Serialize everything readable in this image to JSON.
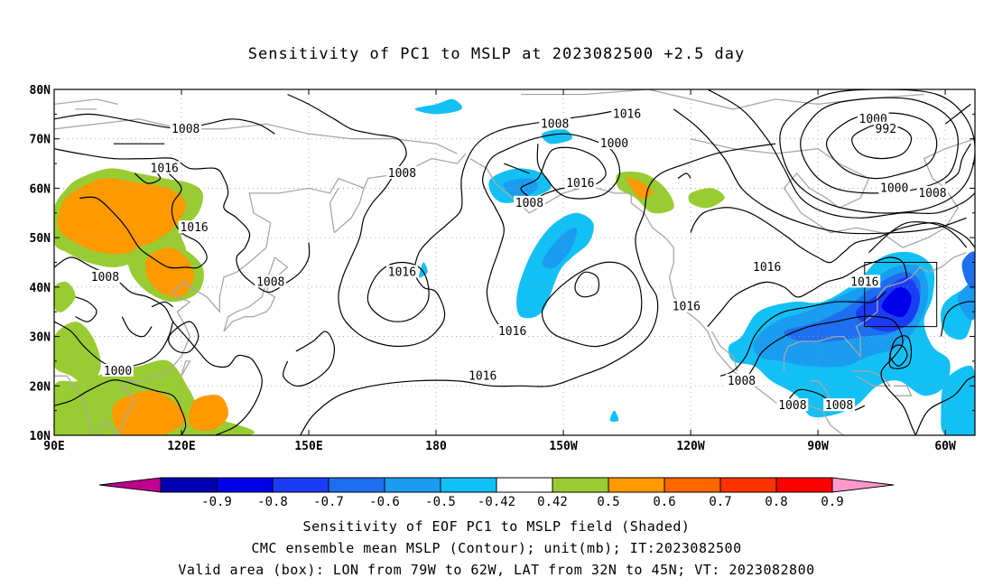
{
  "title": "Sensitivity of PC1 to MSLP at 2023082500 +2.5 day",
  "map": {
    "lat_labels": [
      "80N",
      "70N",
      "60N",
      "50N",
      "40N",
      "30N",
      "20N",
      "10N"
    ],
    "lon_labels": [
      "90E",
      "120E",
      "150E",
      "180",
      "150W",
      "120W",
      "90W",
      "60W"
    ],
    "extent": {
      "lon_min": 90,
      "lon_max": 307,
      "lat_min": 10,
      "lat_max": 80
    },
    "valid_box": {
      "lon_from": "79W",
      "lon_to": "62W",
      "lat_from": "32N",
      "lat_to": "45N"
    },
    "contour_labels": [
      {
        "text": "1008",
        "lon": 121,
        "lat": 72
      },
      {
        "text": "1016",
        "lon": 116,
        "lat": 64
      },
      {
        "text": "1016",
        "lon": 123,
        "lat": 52
      },
      {
        "text": "1008",
        "lon": 102,
        "lat": 42
      },
      {
        "text": "1008",
        "lon": 141,
        "lat": 41
      },
      {
        "text": "1000",
        "lon": 105,
        "lat": 23
      },
      {
        "text": "1008",
        "lon": 172,
        "lat": 63
      },
      {
        "text": "1016",
        "lon": 172,
        "lat": 43
      },
      {
        "text": "1016",
        "lon": 198,
        "lat": 31
      },
      {
        "text": "1016",
        "lon": 191,
        "lat": 22
      },
      {
        "text": "1008",
        "lon": 208,
        "lat": 73
      },
      {
        "text": "1000",
        "lon": 222,
        "lat": 69
      },
      {
        "text": "1016",
        "lon": 225,
        "lat": 75
      },
      {
        "text": "1016",
        "lon": 214,
        "lat": 61
      },
      {
        "text": "1008",
        "lon": 202,
        "lat": 57
      },
      {
        "text": "1000",
        "lon": 283,
        "lat": 74
      },
      {
        "text": "992",
        "lon": 286,
        "lat": 72
      },
      {
        "text": "1000",
        "lon": 288,
        "lat": 60
      },
      {
        "text": "1008",
        "lon": 297,
        "lat": 59
      },
      {
        "text": "1016",
        "lon": 258,
        "lat": 44
      },
      {
        "text": "1016",
        "lon": 239,
        "lat": 36
      },
      {
        "text": "1016",
        "lon": 281,
        "lat": 41
      },
      {
        "text": "1008",
        "lon": 252,
        "lat": 21
      },
      {
        "text": "1008",
        "lon": 264,
        "lat": 16
      },
      {
        "text": "1008",
        "lon": 275,
        "lat": 16
      }
    ]
  },
  "colorbar": {
    "labels": [
      "-0.9",
      "-0.8",
      "-0.7",
      "-0.6",
      "-0.5",
      "-0.42",
      "0.42",
      "0.5",
      "0.6",
      "0.7",
      "0.8",
      "0.9"
    ],
    "colors": [
      "#c0008f",
      "#0000b0",
      "#0000e8",
      "#1a3cf5",
      "#1e6ff0",
      "#1a9cf0",
      "#12c0f5",
      "#ffffff",
      "#99cc33",
      "#ff9900",
      "#ff6600",
      "#ff3300",
      "#ff0000",
      "#ff99cc"
    ]
  },
  "captions": {
    "line1": "Sensitivity of EOF PC1 to MSLP field (Shaded)",
    "line2": "CMC ensemble mean MSLP (Contour); unit(mb); IT:2023082500",
    "line3": "Valid area (box): LON from 79W to 62W, LAT from 32N to 45N; VT: 2023082800"
  }
}
